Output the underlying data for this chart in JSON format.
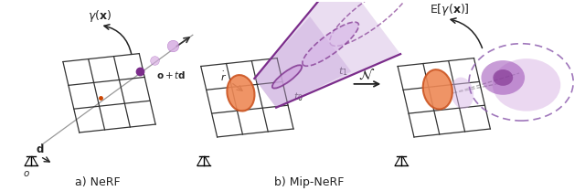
{
  "fig_width": 6.4,
  "fig_height": 2.09,
  "dpi": 100,
  "bg_color": "#ffffff",
  "purple_dark": "#7b2d8b",
  "purple_mid": "#9b4db6",
  "purple_light": "#d4a8e0",
  "purple_cone_edge": "#7b2d8b",
  "purple_cone_fill": "#c4a0d8",
  "orange_edge": "#cc5522",
  "orange_fill": "#ee8855",
  "grid_color": "#333333",
  "label_a": "a) NeRF",
  "label_b": "b) Mip-NeRF",
  "gamma_x": "$\\gamma(\\mathbf{x})$",
  "e_gamma_x": "$\\mathrm{E}[\\gamma(\\mathbf{x})]$",
  "o_td": "$\\mathbf{o} + t\\mathbf{d}$",
  "d_label": "$\\mathbf{d}$",
  "o_label": "$o$",
  "r_dot_label": "$\\dot{r}$",
  "t0_label": "$t_0$",
  "t1_label": "$t_1$",
  "N_label": "$\\mathcal{N}$"
}
